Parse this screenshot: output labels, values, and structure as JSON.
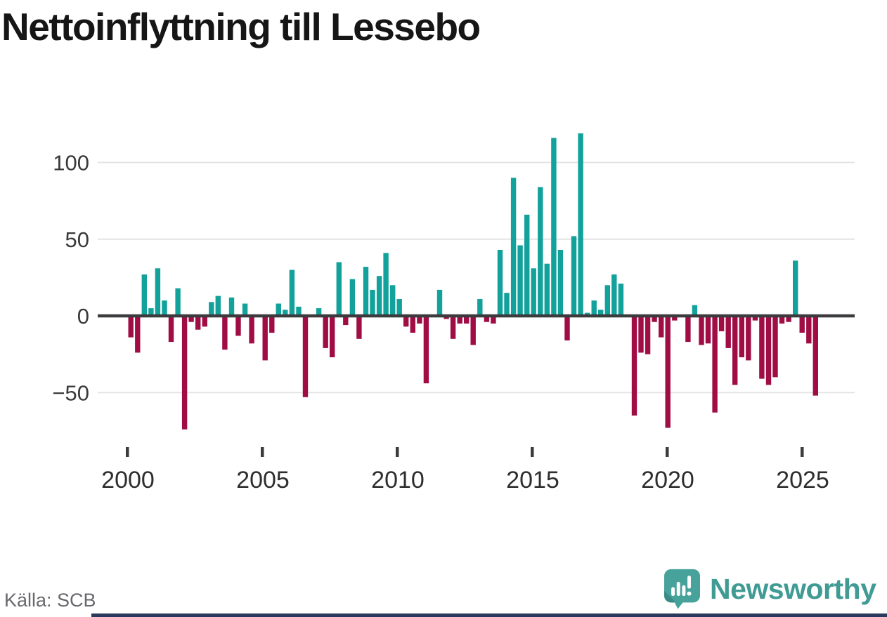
{
  "title": "Nettoinflyttning till Lessebo",
  "source": "Källa: SCB",
  "branding": {
    "name": "Newsworthy",
    "icon": "newsworthy-logo-icon",
    "brand_color": "#3f9b94",
    "footer_bar_color": "#2b3a5c"
  },
  "chart_data": {
    "type": "bar",
    "title": "Nettoinflyttning till Lessebo",
    "frequency": "quarterly",
    "start_period": "2000-Q1",
    "end_period": "2025-Q3",
    "x_tick_labels": [
      "2000",
      "2005",
      "2010",
      "2015",
      "2020",
      "2025"
    ],
    "y_ticks": [
      100,
      50,
      0,
      -50
    ],
    "y_tick_labels": [
      "100",
      "50",
      "0",
      "−50"
    ],
    "ylim": [
      -80,
      125
    ],
    "grid": "horizontal",
    "legend": "none",
    "positive_color": "#12a19b",
    "negative_color": "#a00d45",
    "values": [
      -14,
      -24,
      27,
      5,
      31,
      10,
      -17,
      18,
      -74,
      -4,
      -9,
      -7,
      9,
      13,
      -22,
      12,
      -13,
      8,
      -18,
      0,
      -29,
      -11,
      8,
      4,
      30,
      6,
      -53,
      0,
      5,
      -21,
      -27,
      35,
      -6,
      24,
      -15,
      32,
      17,
      26,
      41,
      20,
      11,
      -7,
      -11,
      -5,
      -44,
      0,
      17,
      -2,
      -15,
      -5,
      -5,
      -19,
      11,
      -4,
      -5,
      43,
      15,
      90,
      46,
      66,
      31,
      84,
      34,
      116,
      43,
      -16,
      52,
      119,
      2,
      10,
      4,
      20,
      27,
      21,
      0,
      -65,
      -24,
      -25,
      -4,
      -14,
      -73,
      -3,
      0,
      -17,
      7,
      -19,
      -18,
      -63,
      -10,
      -21,
      -45,
      -27,
      -29,
      -3,
      -41,
      -45,
      -40,
      -5,
      -4,
      36,
      -11,
      -18,
      -52
    ]
  }
}
